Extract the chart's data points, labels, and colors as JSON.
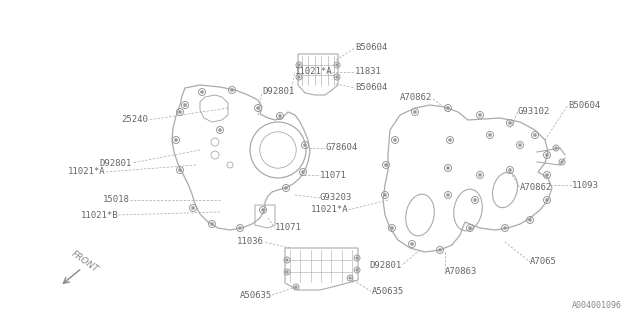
{
  "bg_color": "#ffffff",
  "line_color": "#aaaaaa",
  "text_color": "#777777",
  "diagram_id": "A004001096",
  "figsize": [
    6.4,
    3.2
  ],
  "dpi": 100,
  "xlim": [
    0,
    640
  ],
  "ylim": [
    0,
    320
  ]
}
